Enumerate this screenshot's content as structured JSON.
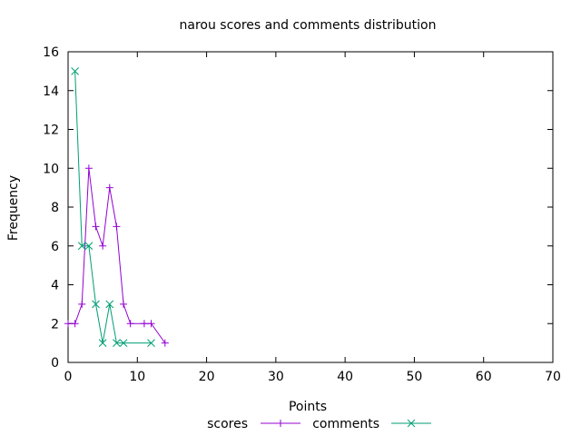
{
  "chart_data": {
    "type": "line",
    "title": "narou scores and comments distribution",
    "xlabel": "Points",
    "ylabel": "Frequency",
    "xlim": [
      0,
      70
    ],
    "ylim": [
      0,
      16
    ],
    "x_ticks": [
      0,
      10,
      20,
      30,
      40,
      50,
      60,
      70
    ],
    "y_ticks": [
      0,
      2,
      4,
      6,
      8,
      10,
      12,
      14,
      16
    ],
    "grid": false,
    "legend_position": "bottom-center",
    "series": [
      {
        "name": "scores",
        "color": "#9400d3",
        "marker": "plus",
        "x": [
          0,
          1,
          2,
          3,
          4,
          5,
          6,
          7,
          8,
          9,
          11,
          12,
          14
        ],
        "y": [
          2,
          2,
          3,
          10,
          7,
          6,
          9,
          7,
          3,
          2,
          2,
          2,
          1
        ]
      },
      {
        "name": "comments",
        "color": "#009e73",
        "marker": "cross",
        "x": [
          1,
          2,
          3,
          4,
          5,
          6,
          7,
          8,
          12
        ],
        "y": [
          15,
          6,
          6,
          3,
          1,
          3,
          1,
          1,
          1
        ]
      }
    ]
  }
}
